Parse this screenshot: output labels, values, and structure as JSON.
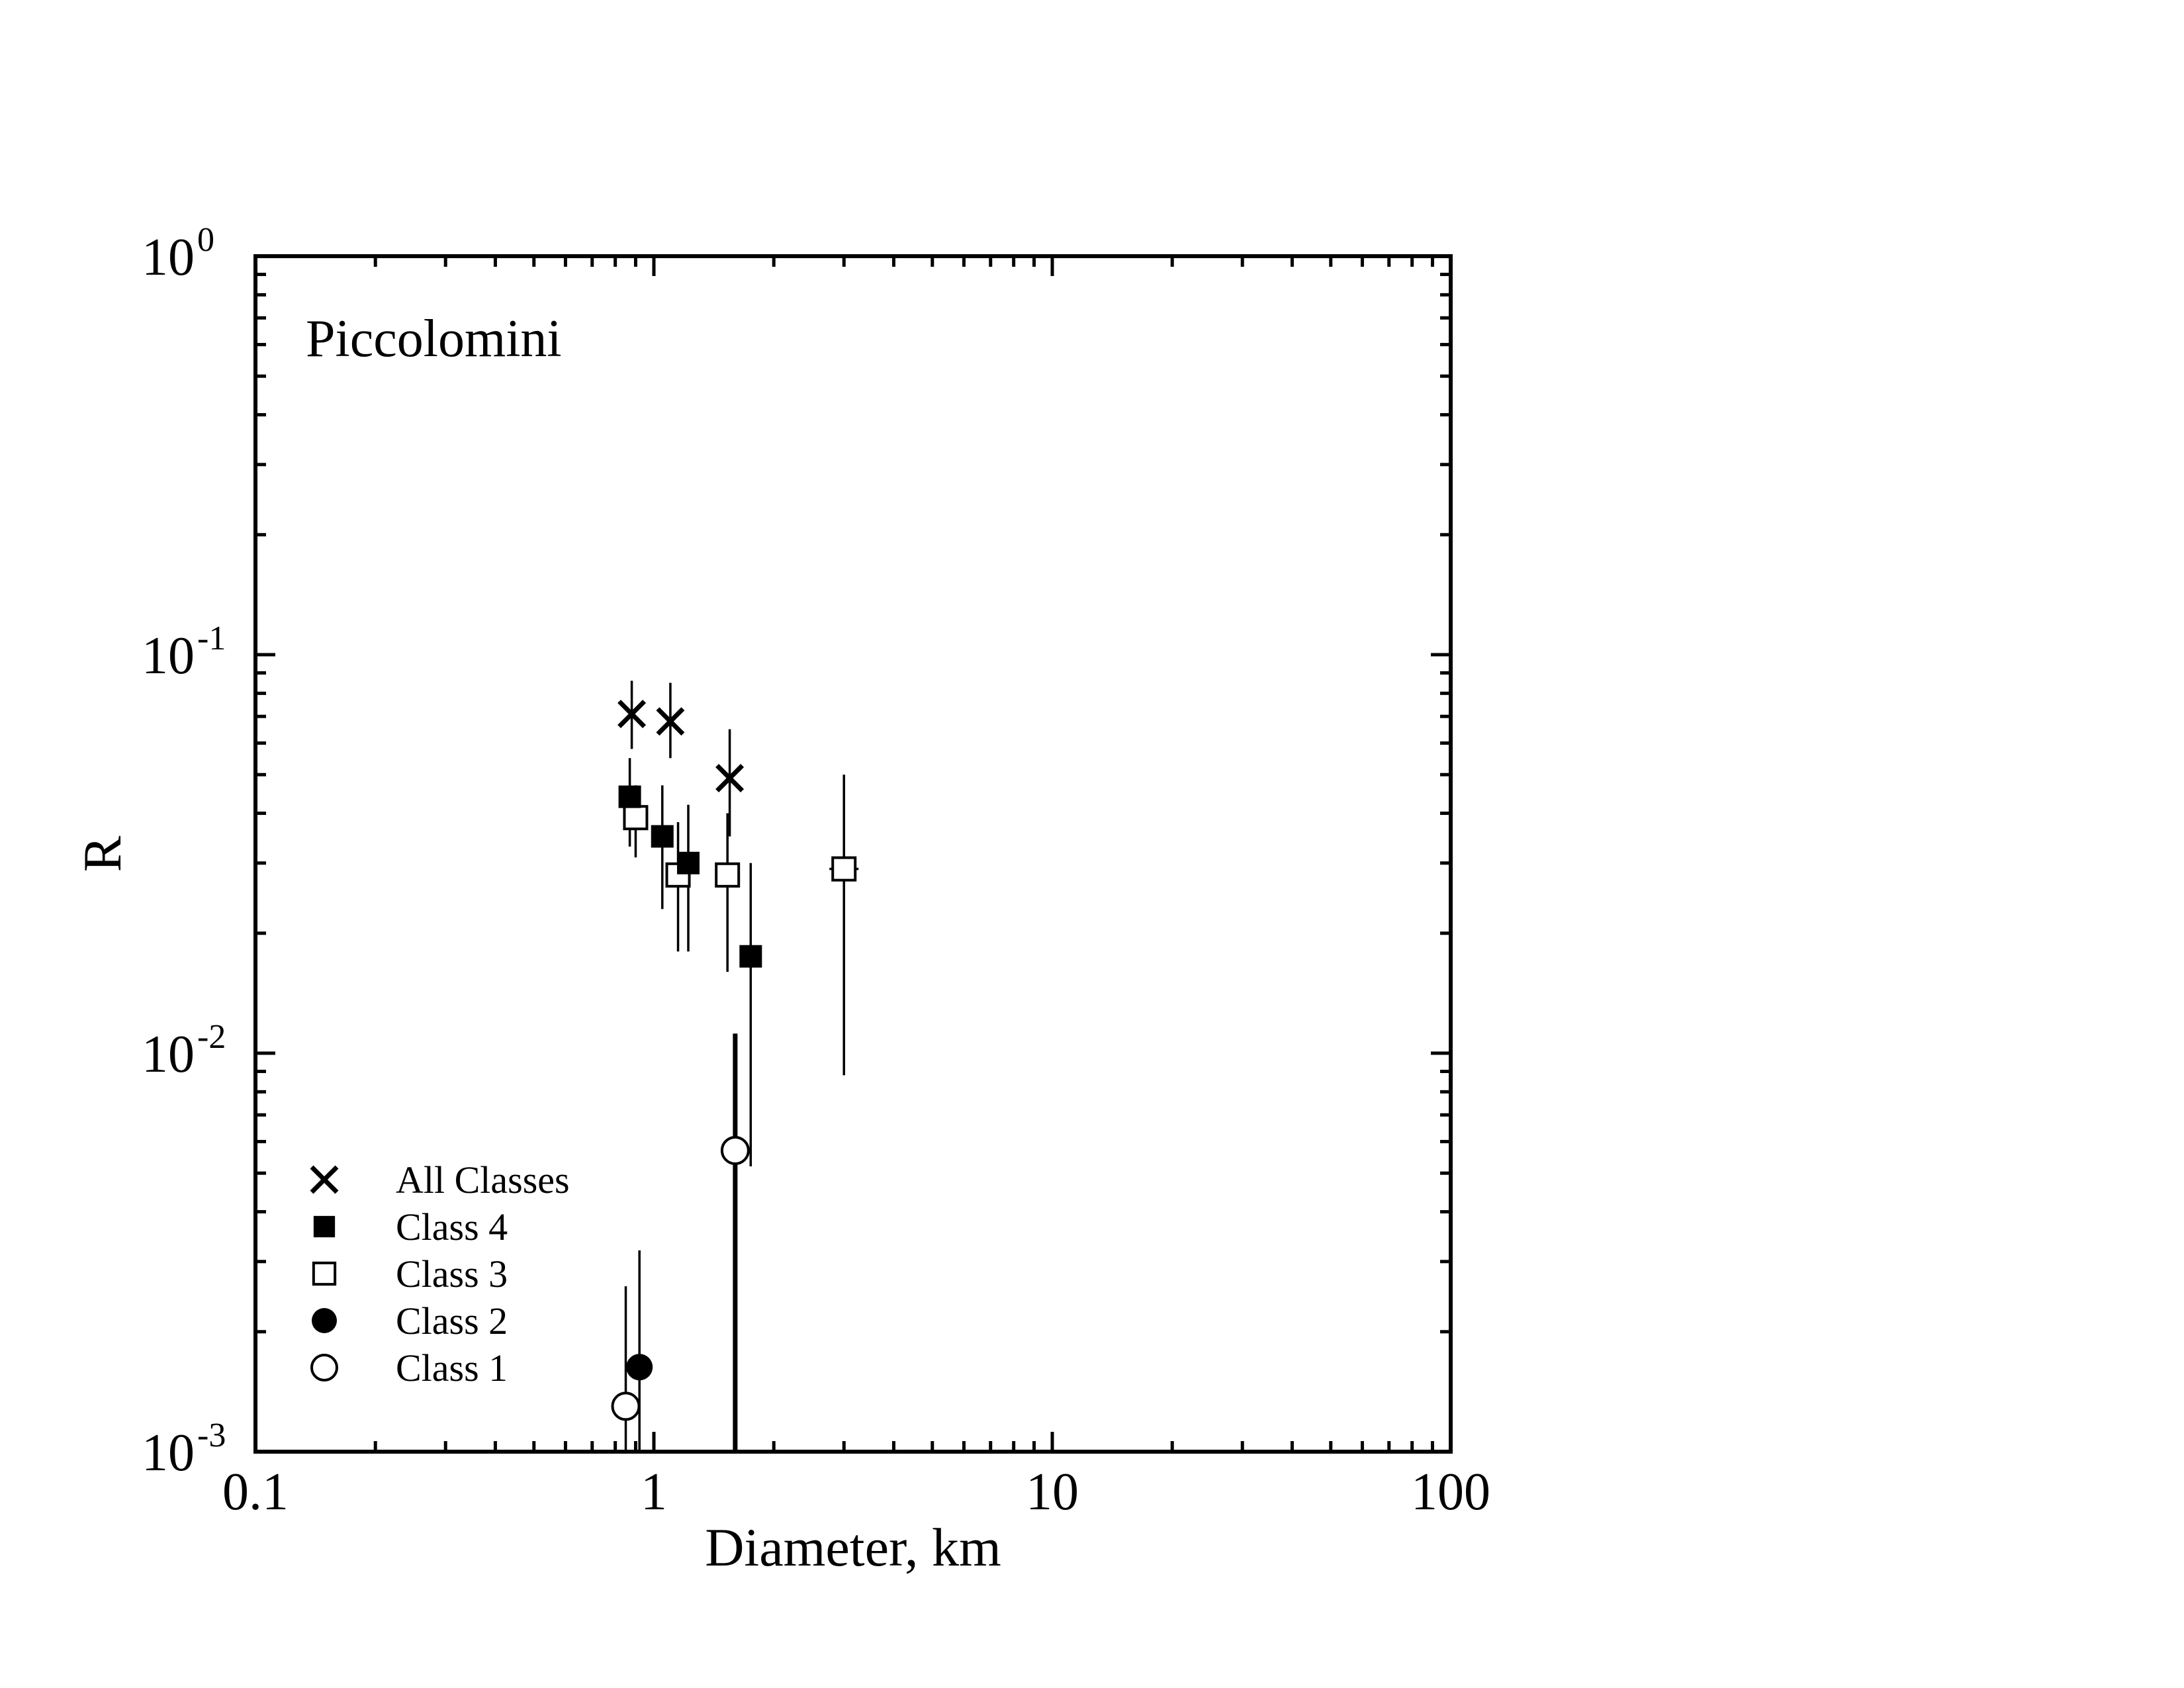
{
  "chart_data": {
    "type": "scatter",
    "title": "Piccolomini",
    "xlabel": "Diameter, km",
    "ylabel": "R",
    "x_scale": "log",
    "y_scale": "log",
    "xlim": [
      0.1,
      100
    ],
    "ylim": [
      0.001,
      1
    ],
    "x_tick_labels": [
      {
        "value": 0.1,
        "label": "0.1"
      },
      {
        "value": 1,
        "label": "1"
      },
      {
        "value": 10,
        "label": "10"
      },
      {
        "value": 100,
        "label": "100"
      }
    ],
    "y_tick_labels": [
      {
        "value": 1,
        "base": "10",
        "exp": "0"
      },
      {
        "value": 0.1,
        "base": "10",
        "exp": "-1"
      },
      {
        "value": 0.01,
        "base": "10",
        "exp": "-2"
      },
      {
        "value": 0.001,
        "base": "10",
        "exp": "-3"
      }
    ],
    "grid": false,
    "legend_position": "bottom-left",
    "series": [
      {
        "name": "All Classes",
        "marker": "x",
        "points": [
          {
            "x": 0.88,
            "y": 0.071,
            "ylo": 0.058,
            "yhi": 0.086
          },
          {
            "x": 1.1,
            "y": 0.068,
            "ylo": 0.055,
            "yhi": 0.085
          },
          {
            "x": 1.55,
            "y": 0.049,
            "ylo": 0.035,
            "yhi": 0.065
          }
        ]
      },
      {
        "name": "Class 4",
        "marker": "filled-square",
        "points": [
          {
            "x": 0.87,
            "y": 0.044,
            "ylo": 0.033,
            "yhi": 0.055
          },
          {
            "x": 1.05,
            "y": 0.035,
            "ylo": 0.023,
            "yhi": 0.047
          },
          {
            "x": 1.22,
            "y": 0.03,
            "ylo": 0.018,
            "yhi": 0.042
          },
          {
            "x": 1.75,
            "y": 0.0175,
            "ylo": 0.0052,
            "yhi": 0.03
          }
        ]
      },
      {
        "name": "Class 3",
        "marker": "open-square",
        "points": [
          {
            "x": 0.9,
            "y": 0.039,
            "ylo": 0.031,
            "yhi": 0.047
          },
          {
            "x": 1.15,
            "y": 0.028,
            "ylo": 0.018,
            "yhi": 0.038
          },
          {
            "x": 1.53,
            "y": 0.028,
            "ylo": 0.016,
            "yhi": 0.04
          },
          {
            "x": 3.0,
            "y": 0.029,
            "ylo": 0.0088,
            "yhi": 0.05
          }
        ]
      },
      {
        "name": "Class 2",
        "marker": "filled-circle",
        "points": [
          {
            "x": 0.92,
            "y": 0.00163,
            "ylo": 0.001,
            "yhi": 0.0032
          }
        ]
      },
      {
        "name": "Class 1",
        "marker": "open-circle",
        "points": [
          {
            "x": 0.85,
            "y": 0.0013,
            "ylo": 0.001,
            "yhi": 0.0026
          },
          {
            "x": 1.6,
            "y": 0.0057,
            "ylo": 0.001,
            "yhi": 0.0112
          }
        ]
      }
    ]
  }
}
